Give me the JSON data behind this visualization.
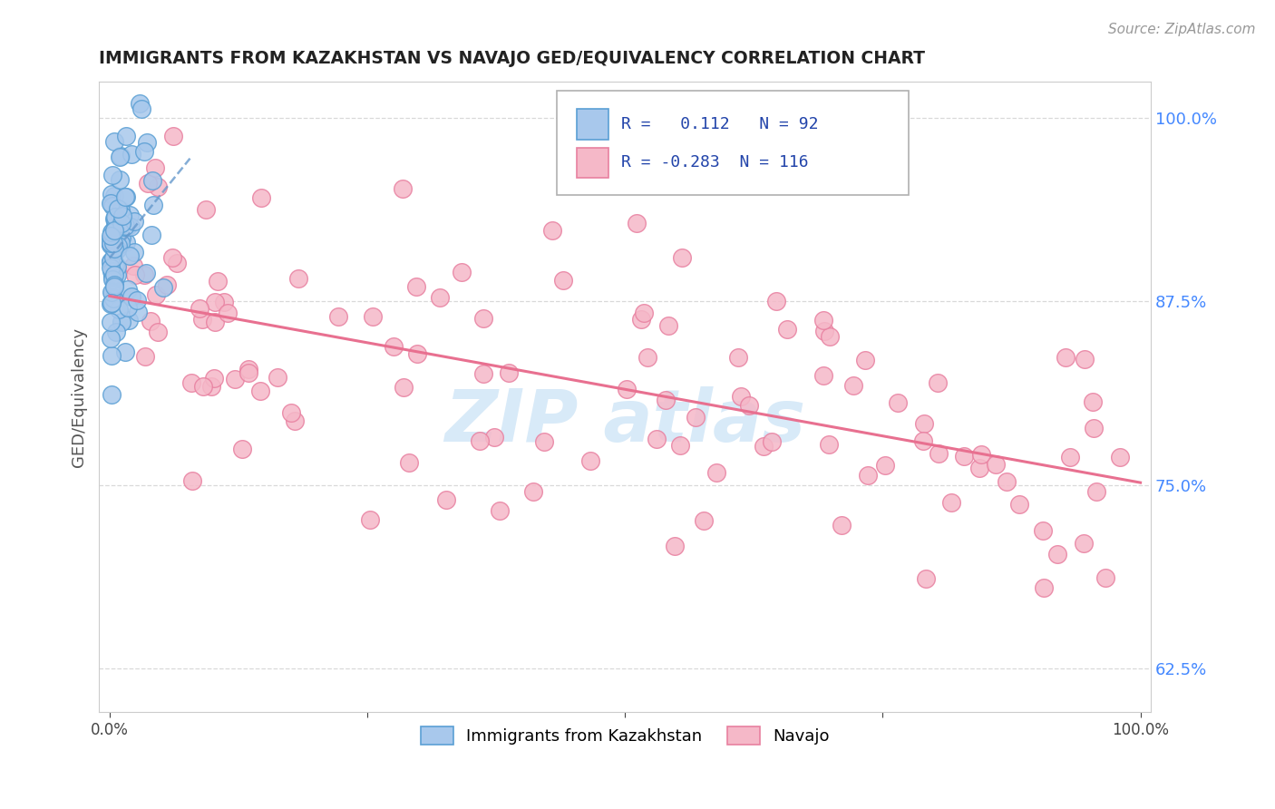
{
  "title": "IMMIGRANTS FROM KAZAKHSTAN VS NAVAJO GED/EQUIVALENCY CORRELATION CHART",
  "source_text": "Source: ZipAtlas.com",
  "ylabel": "GED/Equivalency",
  "xlim": [
    -0.01,
    1.01
  ],
  "ylim": [
    0.595,
    1.025
  ],
  "yticks": [
    0.625,
    0.75,
    0.875,
    1.0
  ],
  "ytick_labels": [
    "62.5%",
    "75.0%",
    "87.5%",
    "100.0%"
  ],
  "blue_R": 0.112,
  "blue_N": 92,
  "pink_R": -0.283,
  "pink_N": 116,
  "blue_color": "#A8C8EC",
  "pink_color": "#F5B8C8",
  "blue_edge": "#5A9FD4",
  "pink_edge": "#E880A0",
  "trend_blue": "#6699CC",
  "trend_pink": "#E87090",
  "legend_blue_label": "Immigrants from Kazakhstan",
  "legend_pink_label": "Navajo",
  "background_color": "#ffffff",
  "grid_color": "#d0d0d0",
  "title_color": "#222222",
  "axis_label_color": "#555555",
  "tick_color_right": "#4488ff",
  "watermark_color": "#d8eaf8"
}
